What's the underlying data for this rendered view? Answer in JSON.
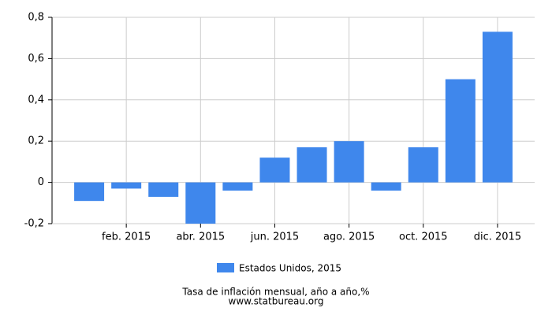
{
  "chart_data": {
    "type": "bar",
    "categories": [
      null,
      "feb. 2015",
      null,
      "abr. 2015",
      null,
      "jun. 2015",
      null,
      "ago. 2015",
      null,
      "oct. 2015",
      null,
      "dic. 2015"
    ],
    "series": [
      {
        "name": "Estados Unidos, 2015",
        "color": "#3f87ec",
        "values": [
          -0.09,
          -0.03,
          -0.07,
          -0.2,
          -0.04,
          0.12,
          0.17,
          0.2,
          -0.04,
          0.17,
          0.5,
          0.73
        ]
      }
    ],
    "ylim": [
      -0.2,
      0.8
    ],
    "yticks": [
      {
        "value": -0.2,
        "label": "-0,2"
      },
      0,
      {
        "value": 0.2,
        "label": "0,2"
      },
      {
        "value": 0.4,
        "label": "0,4"
      },
      {
        "value": 0.6,
        "label": "0,6"
      },
      {
        "value": 0.8,
        "label": "0,8"
      }
    ],
    "grid": true,
    "footer": [
      "Tasa de inflación mensual, año a año,%",
      "www.statbureau.org"
    ]
  }
}
